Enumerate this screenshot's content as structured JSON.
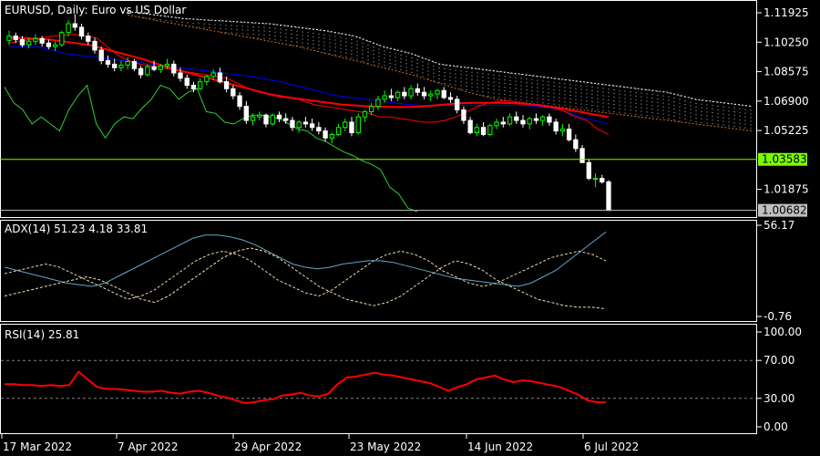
{
  "chart_data": {
    "type": "candlestick",
    "main": {
      "title": "EURUSD, Daily:  Euro vs US Dollar",
      "yticks": [
        "1.11925",
        "1.10250",
        "1.08575",
        "1.06900",
        "1.05225",
        "1.01875"
      ],
      "hline_label": "1.03583",
      "price_label": "1.00682",
      "ylim": [
        1.003,
        1.126
      ],
      "hline_value": 1.03583,
      "price_value": 1.00682,
      "candles": [
        [
          1.1035,
          1.109,
          1.101,
          1.106
        ],
        [
          1.106,
          1.108,
          1.102,
          1.104
        ],
        [
          1.104,
          1.106,
          1.0995,
          1.101
        ],
        [
          1.101,
          1.105,
          1.099,
          1.103
        ],
        [
          1.103,
          1.107,
          1.101,
          1.1045
        ],
        [
          1.1045,
          1.106,
          1.1,
          1.102
        ],
        [
          1.102,
          1.104,
          1.0985,
          1.1
        ],
        [
          1.1,
          1.103,
          1.0975,
          1.101
        ],
        [
          1.101,
          1.109,
          1.1,
          1.108
        ],
        [
          1.108,
          1.115,
          1.106,
          1.113
        ],
        [
          1.113,
          1.1185,
          1.109,
          1.111
        ],
        [
          1.111,
          1.113,
          1.104,
          1.106
        ],
        [
          1.106,
          1.108,
          1.101,
          1.103
        ],
        [
          1.103,
          1.105,
          1.096,
          1.098
        ],
        [
          1.098,
          1.1,
          1.09,
          1.092
        ],
        [
          1.092,
          1.095,
          1.088,
          1.09
        ],
        [
          1.09,
          1.093,
          1.086,
          1.088
        ],
        [
          1.088,
          1.092,
          1.086,
          1.0895
        ],
        [
          1.0895,
          1.094,
          1.087,
          1.0915
        ],
        [
          1.0915,
          1.093,
          1.086,
          1.0875
        ],
        [
          1.0875,
          1.089,
          1.082,
          1.084
        ],
        [
          1.084,
          1.09,
          1.083,
          1.0885
        ],
        [
          1.0885,
          1.092,
          1.086,
          1.087
        ],
        [
          1.087,
          1.09,
          1.085,
          1.089
        ],
        [
          1.089,
          1.093,
          1.087,
          1.09
        ],
        [
          1.09,
          1.092,
          1.083,
          1.085
        ],
        [
          1.085,
          1.088,
          1.08,
          1.082
        ],
        [
          1.082,
          1.084,
          1.076,
          1.078
        ],
        [
          1.078,
          1.08,
          1.074,
          1.076
        ],
        [
          1.076,
          1.082,
          1.075,
          1.08
        ],
        [
          1.08,
          1.084,
          1.078,
          1.083
        ],
        [
          1.083,
          1.087,
          1.081,
          1.085
        ],
        [
          1.085,
          1.088,
          1.079,
          1.08
        ],
        [
          1.08,
          1.083,
          1.074,
          1.076
        ],
        [
          1.076,
          1.078,
          1.07,
          1.072
        ],
        [
          1.072,
          1.074,
          1.064,
          1.066
        ],
        [
          1.066,
          1.069,
          1.056,
          1.058
        ],
        [
          1.058,
          1.062,
          1.055,
          1.06
        ],
        [
          1.06,
          1.063,
          1.058,
          1.061
        ],
        [
          1.061,
          1.062,
          1.054,
          1.056
        ],
        [
          1.056,
          1.062,
          1.055,
          1.061
        ],
        [
          1.061,
          1.063,
          1.057,
          1.059
        ],
        [
          1.059,
          1.062,
          1.056,
          1.058
        ],
        [
          1.058,
          1.06,
          1.052,
          1.054
        ],
        [
          1.054,
          1.058,
          1.051,
          1.057
        ],
        [
          1.057,
          1.06,
          1.054,
          1.056
        ],
        [
          1.056,
          1.059,
          1.052,
          1.054
        ],
        [
          1.054,
          1.057,
          1.05,
          1.052
        ],
        [
          1.052,
          1.054,
          1.046,
          1.048
        ],
        [
          1.048,
          1.051,
          1.045,
          1.05
        ],
        [
          1.05,
          1.056,
          1.049,
          1.054
        ],
        [
          1.054,
          1.059,
          1.052,
          1.057
        ],
        [
          1.057,
          1.06,
          1.049,
          1.051
        ],
        [
          1.051,
          1.062,
          1.05,
          1.06
        ],
        [
          1.06,
          1.064,
          1.057,
          1.063
        ],
        [
          1.063,
          1.068,
          1.061,
          1.066
        ],
        [
          1.066,
          1.072,
          1.064,
          1.07
        ],
        [
          1.07,
          1.075,
          1.068,
          1.072
        ],
        [
          1.072,
          1.076,
          1.069,
          1.071
        ],
        [
          1.071,
          1.075,
          1.069,
          1.074
        ],
        [
          1.074,
          1.077,
          1.07,
          1.072
        ],
        [
          1.072,
          1.078,
          1.07,
          1.076
        ],
        [
          1.076,
          1.079,
          1.072,
          1.074
        ],
        [
          1.074,
          1.077,
          1.07,
          1.072
        ],
        [
          1.072,
          1.075,
          1.069,
          1.073
        ],
        [
          1.073,
          1.076,
          1.07,
          1.075
        ],
        [
          1.075,
          1.077,
          1.07,
          1.071
        ],
        [
          1.071,
          1.074,
          1.068,
          1.07
        ],
        [
          1.07,
          1.072,
          1.062,
          1.064
        ],
        [
          1.064,
          1.066,
          1.056,
          1.058
        ],
        [
          1.058,
          1.06,
          1.05,
          1.051
        ],
        [
          1.051,
          1.056,
          1.049,
          1.054
        ],
        [
          1.054,
          1.057,
          1.049,
          1.05
        ],
        [
          1.05,
          1.056,
          1.049,
          1.055
        ],
        [
          1.055,
          1.059,
          1.053,
          1.057
        ],
        [
          1.057,
          1.06,
          1.054,
          1.056
        ],
        [
          1.056,
          1.062,
          1.055,
          1.06
        ],
        [
          1.06,
          1.063,
          1.056,
          1.058
        ],
        [
          1.058,
          1.061,
          1.054,
          1.056
        ],
        [
          1.056,
          1.06,
          1.053,
          1.059
        ],
        [
          1.059,
          1.062,
          1.056,
          1.058
        ],
        [
          1.058,
          1.061,
          1.055,
          1.06
        ],
        [
          1.06,
          1.062,
          1.055,
          1.057
        ],
        [
          1.057,
          1.059,
          1.05,
          1.052
        ],
        [
          1.052,
          1.056,
          1.049,
          1.053
        ],
        [
          1.053,
          1.056,
          1.046,
          1.047
        ],
        [
          1.047,
          1.05,
          1.04,
          1.042
        ],
        [
          1.042,
          1.044,
          1.034,
          1.034
        ],
        [
          1.034,
          1.036,
          1.024,
          1.025
        ],
        [
          1.025,
          1.028,
          1.02,
          1.025
        ],
        [
          1.025,
          1.027,
          1.022,
          1.023
        ],
        [
          1.023,
          1.024,
          1.008,
          1.0068
        ]
      ],
      "ma_fast": [
        1.102,
        1.103,
        1.104,
        1.105,
        1.106,
        1.1065,
        1.107,
        1.106,
        1.105,
        1.1,
        1.095,
        1.092,
        1.09,
        1.089,
        1.088,
        1.087,
        1.086,
        1.085,
        1.084,
        1.083,
        1.082,
        1.079,
        1.076,
        1.074,
        1.073,
        1.072,
        1.071,
        1.069,
        1.067,
        1.066,
        1.065,
        1.064,
        1.063,
        1.062,
        1.06,
        1.06,
        1.059,
        1.058,
        1.057,
        1.057,
        1.058,
        1.06,
        1.063,
        1.066,
        1.068,
        1.069,
        1.069,
        1.068,
        1.067,
        1.066,
        1.065,
        1.063,
        1.06,
        1.058,
        1.053,
        1.05
      ],
      "ma_slow": [
        1.105,
        1.105,
        1.1045,
        1.104,
        1.103,
        1.102,
        1.101,
        1.099,
        1.097,
        1.095,
        1.093,
        1.0905,
        1.088,
        1.086,
        1.084,
        1.082,
        1.08,
        1.078,
        1.076,
        1.074,
        1.072,
        1.071,
        1.07,
        1.069,
        1.068,
        1.067,
        1.0665,
        1.066,
        1.0658,
        1.0656,
        1.0656,
        1.066,
        1.0666,
        1.0672,
        1.0678,
        1.068,
        1.068,
        1.068,
        1.0677,
        1.0673,
        1.0665,
        1.0653,
        1.064,
        1.0627,
        1.0612,
        1.06
      ],
      "lagging": [
        1.077,
        1.068,
        1.064,
        1.056,
        1.06,
        1.056,
        1.052,
        1.064,
        1.072,
        1.078,
        1.056,
        1.048,
        1.056,
        1.06,
        1.059,
        1.065,
        1.07,
        1.078,
        1.076,
        1.07,
        1.074,
        1.076,
        1.063,
        1.062,
        1.057,
        1.056,
        1.059,
        1.061,
        1.061,
        1.06,
        1.059,
        1.056,
        1.053,
        1.052,
        1.048,
        1.046,
        1.043,
        1.04,
        1.038,
        1.035,
        1.033,
        1.03,
        1.02,
        1.016,
        1.008,
        1.006
      ],
      "tenkan": [
        1.1,
        1.1,
        1.1,
        1.098,
        1.096,
        1.095,
        1.094,
        1.093,
        1.092,
        1.091,
        1.09,
        1.089,
        1.088,
        1.087,
        1.086,
        1.085,
        1.084,
        1.083,
        1.0815,
        1.08,
        1.078,
        1.076,
        1.074,
        1.072,
        1.071,
        1.07,
        1.069,
        1.068,
        1.067,
        1.0665,
        1.0665,
        1.0665,
        1.0665,
        1.0665,
        1.0665,
        1.0665,
        1.0665,
        1.066,
        1.065,
        1.063,
        1.06,
        1.058,
        1.056
      ],
      "cloud_top": [
        1.12,
        1.118,
        1.116,
        1.115,
        1.114,
        1.113,
        1.111,
        1.109,
        1.106,
        1.1,
        1.096,
        1.09,
        1.088,
        1.086,
        1.084,
        1.082,
        1.08,
        1.078,
        1.076,
        1.074,
        1.07,
        1.068,
        1.066
      ],
      "cloud_bottom": [
        1.118,
        1.115,
        1.112,
        1.109,
        1.106,
        1.103,
        1.1,
        1.096,
        1.092,
        1.088,
        1.084,
        1.079,
        1.074,
        1.07,
        1.068,
        1.066,
        1.064,
        1.062,
        1.06,
        1.058,
        1.056,
        1.054,
        1.052
      ]
    },
    "adx": {
      "label": "ADX(14) 51.23 4.18 33.81",
      "ytick_top": "56.17",
      "ytick_bottom": "-0.76",
      "ylim": [
        -0.76,
        56.17
      ],
      "adx": [
        30,
        28,
        26,
        24,
        22,
        20,
        19,
        18,
        20,
        24,
        28,
        32,
        36,
        40,
        44,
        48,
        50,
        50,
        49,
        47,
        44,
        40,
        36,
        32,
        30,
        29,
        30,
        32,
        33,
        34,
        34,
        33,
        31,
        29,
        27,
        25,
        23,
        22,
        21,
        20,
        19,
        18,
        20,
        24,
        28,
        34,
        40,
        46,
        52
      ],
      "plus_di": [
        12,
        14,
        16,
        18,
        20,
        22,
        24,
        22,
        18,
        14,
        10,
        8,
        12,
        18,
        24,
        30,
        36,
        40,
        42,
        40,
        36,
        30,
        24,
        18,
        14,
        10,
        8,
        6,
        8,
        12,
        18,
        24,
        30,
        34,
        32,
        28,
        22,
        18,
        14,
        10,
        8,
        6,
        5,
        5,
        4
      ],
      "minus_di": [
        26,
        28,
        30,
        32,
        30,
        26,
        22,
        18,
        14,
        10,
        12,
        16,
        22,
        28,
        34,
        38,
        40,
        38,
        34,
        28,
        22,
        18,
        14,
        12,
        16,
        22,
        28,
        34,
        38,
        40,
        38,
        34,
        28,
        24,
        20,
        18,
        20,
        24,
        28,
        32,
        36,
        38,
        40,
        38,
        34
      ]
    },
    "rsi": {
      "label": "RSI(14) 25.81",
      "yticks": [
        "100.00",
        "70.00",
        "30.00",
        "0.00"
      ],
      "levels": [
        70,
        30
      ],
      "values": [
        45,
        45,
        44,
        44,
        43,
        44,
        43,
        44,
        58,
        50,
        42,
        40,
        40,
        39,
        38,
        37,
        37,
        38,
        36,
        35,
        37,
        38,
        36,
        33,
        31,
        28,
        25,
        26,
        28,
        29,
        33,
        34,
        36,
        33,
        32,
        35,
        45,
        52,
        53,
        55,
        57,
        55,
        54,
        52,
        50,
        48,
        46,
        42,
        38,
        42,
        45,
        50,
        52,
        54,
        50,
        47,
        49,
        48,
        46,
        44,
        42,
        38,
        34,
        28,
        26,
        25.81
      ]
    },
    "xticks": [
      "17 Mar 2022",
      "7 Apr 2022",
      "29 Apr 2022",
      "23 May 2022",
      "14 Jun 2022",
      "6 Jul 2022"
    ],
    "colors": {
      "bull": "#00ff00",
      "bear": "#ffffff",
      "ma_fast": "#ff0000",
      "ma_slow": "#ff0000",
      "tenkan": "#0000ff",
      "lagging": "#32cd32",
      "cloud_top": "#ffffff",
      "cloud_bottom": "#d2691e",
      "hline": "#7cfc00",
      "price_box": "#c0c0c0",
      "adx_line": "#5fa8c8",
      "plus_di": "#f5deb3",
      "minus_di": "#e6d6a8",
      "rsi_line": "#ff0000",
      "axis": "#ffffff",
      "grid": "#808080"
    }
  }
}
